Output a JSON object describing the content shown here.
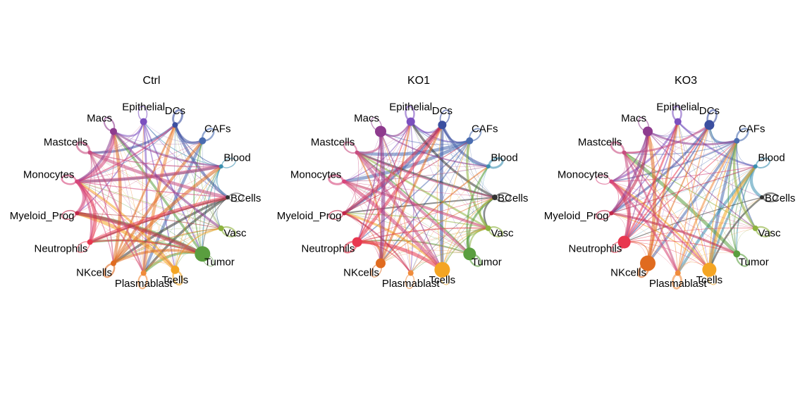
{
  "panels": [
    {
      "title": "Ctrl",
      "nodes": [
        "Epithelial",
        "DCs",
        "CAFs",
        "Blood",
        "BCells",
        "Vasc",
        "Tumor",
        "Tcells",
        "Plasmablast",
        "NKcells",
        "Neutrophils",
        "Myeloid_Prog",
        "Monocytes",
        "Mastcells",
        "Macs"
      ]
    },
    {
      "title": "KO1",
      "nodes": [
        "Epithelial",
        "DCs",
        "CAFs",
        "Blood",
        "BCells",
        "Vasc",
        "Tumor",
        "Tcells",
        "Plasmablast",
        "NKcells",
        "Neutrophils",
        "Myeloid_Prog",
        "Monocytes",
        "Mastcells",
        "Macs"
      ]
    },
    {
      "title": "KO3",
      "nodes": [
        "Epithelial",
        "DCs",
        "CAFs",
        "Blood",
        "BCells",
        "Vasc",
        "Tumor",
        "Tcells",
        "Plasmablast",
        "NKcells",
        "Neutrophils",
        "Myeloid_Prog",
        "Monocytes",
        "Mastcells",
        "Macs"
      ]
    }
  ]
}
